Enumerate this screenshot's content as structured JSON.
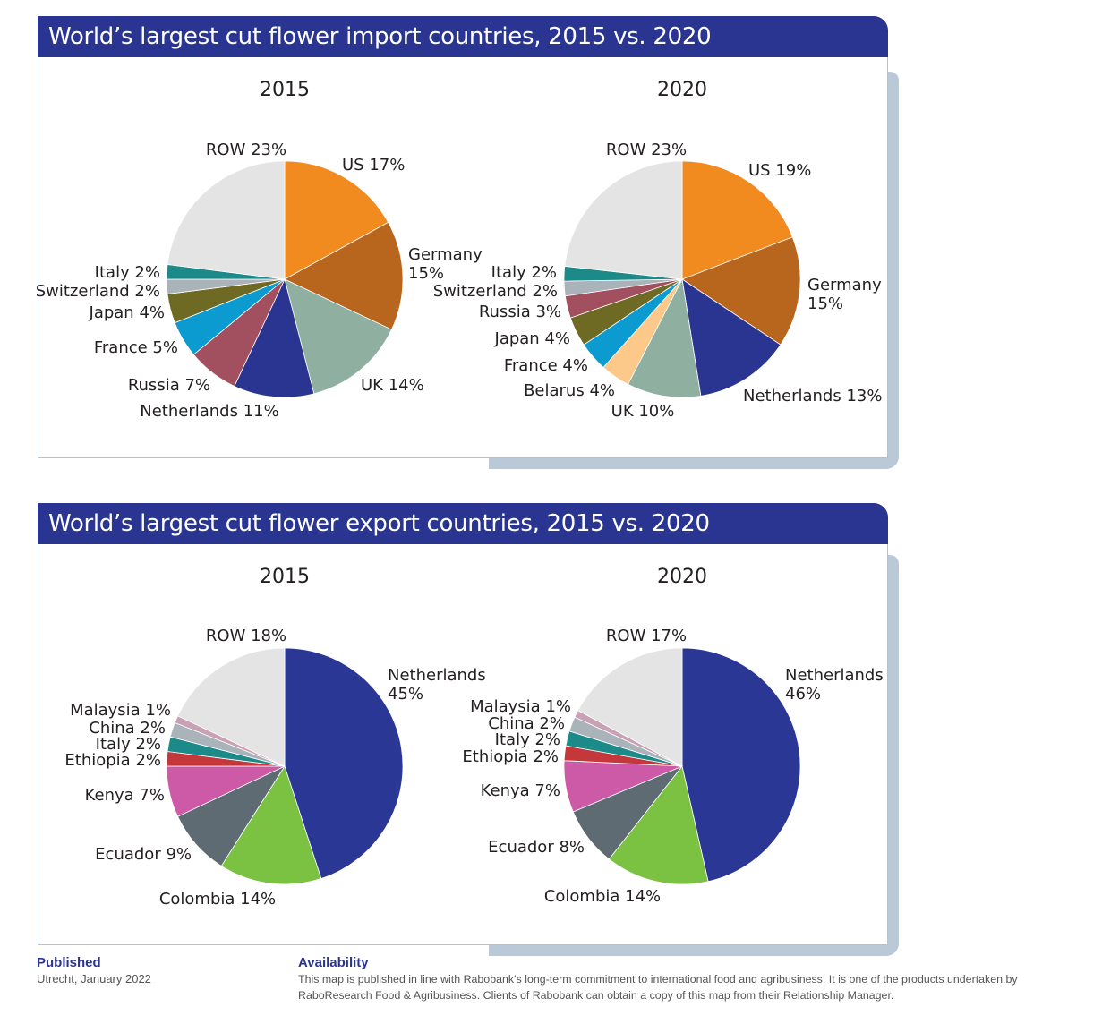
{
  "panels": [
    {
      "title": "World’s largest cut flower import countries, 2015 vs. 2020"
    },
    {
      "title": "World’s largest cut flower export countries, 2015 vs. 2020"
    }
  ],
  "chart_data": [
    {
      "type": "pie",
      "title": "2015",
      "panel": "import",
      "slices": [
        {
          "label": [
            "US 17%"
          ],
          "value": 17,
          "color": "#f28b1f"
        },
        {
          "label": [
            "Germany",
            "15%"
          ],
          "value": 15,
          "color": "#b8651d"
        },
        {
          "label": [
            "UK 14%"
          ],
          "value": 14,
          "color": "#8fb0a0"
        },
        {
          "label": [
            "Netherlands 11%"
          ],
          "value": 11,
          "color": "#2a3591"
        },
        {
          "label": [
            "Russia 7%"
          ],
          "value": 7,
          "color": "#a24f5f"
        },
        {
          "label": [
            "France 5%"
          ],
          "value": 5,
          "color": "#0b9bd0"
        },
        {
          "label": [
            "Japan 4%"
          ],
          "value": 4,
          "color": "#6e6a24"
        },
        {
          "label": [
            "Switzerland 2%"
          ],
          "value": 2,
          "color": "#aab2ba"
        },
        {
          "label": [
            "Italy 2%"
          ],
          "value": 2,
          "color": "#1d8a8a"
        },
        {
          "label": [
            "ROW 23%"
          ],
          "value": 23,
          "color": "#e4e4e4"
        }
      ]
    },
    {
      "type": "pie",
      "title": "2020",
      "panel": "import",
      "slices": [
        {
          "label": [
            "US 19%"
          ],
          "value": 19,
          "color": "#f28b1f"
        },
        {
          "label": [
            "Germany",
            "15%"
          ],
          "value": 15,
          "color": "#b8651d"
        },
        {
          "label": [
            "Netherlands 13%"
          ],
          "value": 13,
          "color": "#2a3591"
        },
        {
          "label": [
            "UK 10%"
          ],
          "value": 10,
          "color": "#8fb0a0"
        },
        {
          "label": [
            "Belarus 4%"
          ],
          "value": 4,
          "color": "#fcc98a"
        },
        {
          "label": [
            "France 4%"
          ],
          "value": 4,
          "color": "#0b9bd0"
        },
        {
          "label": [
            "Japan 4%"
          ],
          "value": 4,
          "color": "#6e6a24"
        },
        {
          "label": [
            "Russia 3%"
          ],
          "value": 3,
          "color": "#a24f5f"
        },
        {
          "label": [
            "Switzerland 2%"
          ],
          "value": 2,
          "color": "#aab2ba"
        },
        {
          "label": [
            "Italy 2%"
          ],
          "value": 2,
          "color": "#1d8a8a"
        },
        {
          "label": [
            "ROW 23%"
          ],
          "value": 23,
          "color": "#e4e4e4"
        }
      ]
    },
    {
      "type": "pie",
      "title": "2015",
      "panel": "export",
      "slices": [
        {
          "label": [
            "Netherlands",
            "45%"
          ],
          "value": 45,
          "color": "#2b3794"
        },
        {
          "label": [
            "Colombia 14%"
          ],
          "value": 14,
          "color": "#7cc242"
        },
        {
          "label": [
            "Ecuador 9%"
          ],
          "value": 9,
          "color": "#5f6b72"
        },
        {
          "label": [
            "Kenya 7%"
          ],
          "value": 7,
          "color": "#cc5aa6"
        },
        {
          "label": [
            "Ethiopia 2%"
          ],
          "value": 2,
          "color": "#c4373a"
        },
        {
          "label": [
            "Italy 2%"
          ],
          "value": 2,
          "color": "#1d8a8a"
        },
        {
          "label": [
            "China 2%"
          ],
          "value": 2,
          "color": "#aab2ba"
        },
        {
          "label": [
            "Malaysia 1%"
          ],
          "value": 1,
          "color": "#c9a1b4"
        },
        {
          "label": [
            "ROW 18%"
          ],
          "value": 18,
          "color": "#e4e4e4"
        }
      ]
    },
    {
      "type": "pie",
      "title": "2020",
      "panel": "export",
      "slices": [
        {
          "label": [
            "Netherlands",
            "46%"
          ],
          "value": 46,
          "color": "#2b3794"
        },
        {
          "label": [
            "Colombia 14%"
          ],
          "value": 14,
          "color": "#7cc242"
        },
        {
          "label": [
            "Ecuador 8%"
          ],
          "value": 8,
          "color": "#5f6b72"
        },
        {
          "label": [
            "Kenya 7%"
          ],
          "value": 7,
          "color": "#cc5aa6"
        },
        {
          "label": [
            "Ethiopia 2%"
          ],
          "value": 2,
          "color": "#c4373a"
        },
        {
          "label": [
            "Italy 2%"
          ],
          "value": 2,
          "color": "#1d8a8a"
        },
        {
          "label": [
            "China 2%"
          ],
          "value": 2,
          "color": "#aab2ba"
        },
        {
          "label": [
            "Malaysia 1%"
          ],
          "value": 1,
          "color": "#c9a1b4"
        },
        {
          "label": [
            "ROW 17%"
          ],
          "value": 17,
          "color": "#e4e4e4"
        }
      ]
    }
  ],
  "footer": {
    "published_label": "Published",
    "published_text": "Utrecht, January 2022",
    "availability_label": "Availability",
    "availability_line1": "This map is published in line with Rabobank’s long-term commitment to international food and agribusiness. It is one of the products undertaken by",
    "availability_line2": "RaboResearch Food & Agribusiness. Clients of Rabobank can obtain a copy of this map from their Relationship Manager."
  }
}
